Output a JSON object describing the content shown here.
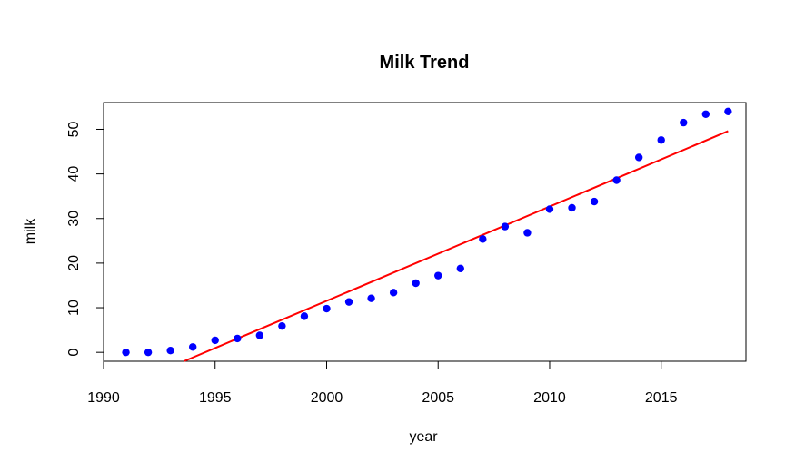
{
  "chart_data": {
    "type": "scatter",
    "title": "Milk Trend",
    "xlabel": "year",
    "ylabel": "milk",
    "xlim": [
      1990,
      2018.8
    ],
    "ylim": [
      -2,
      56
    ],
    "x_ticks": [
      1990,
      1995,
      2000,
      2005,
      2010,
      2015
    ],
    "y_ticks": [
      0,
      10,
      20,
      30,
      40,
      50
    ],
    "x_tick_labels": [
      "1990",
      "1995",
      "2000",
      "2005",
      "2010",
      "2015"
    ],
    "y_tick_labels": [
      "0",
      "10",
      "20",
      "30",
      "40",
      "50"
    ],
    "grid": false,
    "legend": "none",
    "point_color": "#0000ff",
    "line_color": "#ff0000",
    "series": [
      {
        "x": [
          1991,
          1992,
          1993,
          1994,
          1995,
          1996,
          1997,
          1998,
          1999,
          2000,
          2001,
          2002,
          2003,
          2004,
          2005,
          2006,
          2007,
          2008,
          2009,
          2010,
          2011,
          2012,
          2013,
          2014,
          2015,
          2016,
          2017,
          2018
        ],
        "y": [
          0,
          0,
          0.4,
          1.2,
          2.7,
          3.1,
          3.8,
          5.9,
          8.1,
          9.8,
          11.3,
          12.1,
          13.4,
          15.5,
          17.2,
          18.8,
          25.4,
          28.2,
          26.8,
          32.1,
          32.4,
          33.8,
          38.6,
          43.7,
          47.6,
          51.5,
          53.4,
          54.0
        ]
      }
    ],
    "trend_line": {
      "x": [
        1993.6,
        2018
      ],
      "y": [
        -2,
        49.6
      ]
    }
  }
}
